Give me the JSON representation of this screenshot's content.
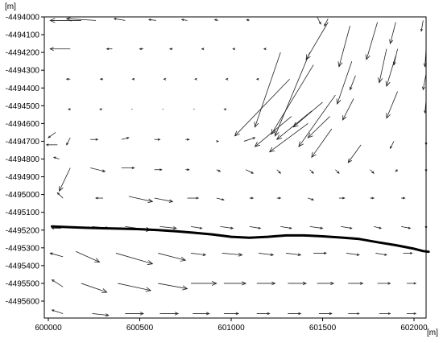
{
  "chart_data": {
    "type": "vector-field",
    "x_unit_label": "[m]",
    "y_unit_label": "[m]",
    "xlim": [
      600000,
      602100
    ],
    "ylim": [
      -4495680,
      -4494000
    ],
    "x_ticks": [
      600000,
      600500,
      601000,
      601500,
      602000
    ],
    "x_tick_labels": [
      "600000",
      "600500",
      "601000",
      "601500",
      "602000"
    ],
    "y_ticks": [
      -4494000,
      -4494100,
      -4494200,
      -4494300,
      -4494400,
      -4494500,
      -4494600,
      -4494700,
      -4494800,
      -4494900,
      -4495000,
      -4495100,
      -4495200,
      -4495300,
      -4495400,
      -4495500,
      -4495600
    ],
    "y_tick_labels": [
      "-4494000",
      "-4494100",
      "-4494200",
      "-4494300",
      "-4494400",
      "-4494500",
      "-4494600",
      "-4494700",
      "-4494800",
      "-4494900",
      "-4495000",
      "-4495100",
      "-4495200",
      "-4495300",
      "-4495400",
      "-4495500",
      "-4495600"
    ],
    "grid": false,
    "vector_units": "m in map coordinates (arrow displacement dx, dy)",
    "vectors": [
      {
        "x": 600180,
        "y": -4494020,
        "dx": -170,
        "dy": 0
      },
      {
        "x": 600260,
        "y": -4494020,
        "dx": -160,
        "dy": 10
      },
      {
        "x": 600420,
        "y": -4494020,
        "dx": -60,
        "dy": 10
      },
      {
        "x": 600590,
        "y": -4494020,
        "dx": -40,
        "dy": 5
      },
      {
        "x": 600760,
        "y": -4494020,
        "dx": -30,
        "dy": 5
      },
      {
        "x": 600930,
        "y": -4494020,
        "dx": -20,
        "dy": 5
      },
      {
        "x": 601100,
        "y": -4494020,
        "dx": -15,
        "dy": 5
      },
      {
        "x": 601470,
        "y": -4493990,
        "dx": 20,
        "dy": -50
      },
      {
        "x": 601530,
        "y": -4494030,
        "dx": -120,
        "dy": -210
      },
      {
        "x": 601530,
        "y": -4494010,
        "dx": -20,
        "dy": -40
      },
      {
        "x": 601800,
        "y": -4494030,
        "dx": -60,
        "dy": -210
      },
      {
        "x": 601900,
        "y": -4494030,
        "dx": -30,
        "dy": -120
      },
      {
        "x": 602050,
        "y": -4494020,
        "dx": -10,
        "dy": -60
      },
      {
        "x": 600120,
        "y": -4494180,
        "dx": -110,
        "dy": 0
      },
      {
        "x": 600350,
        "y": -4494180,
        "dx": -30,
        "dy": 0
      },
      {
        "x": 600520,
        "y": -4494180,
        "dx": -20,
        "dy": 0
      },
      {
        "x": 600680,
        "y": -4494180,
        "dx": -15,
        "dy": 0
      },
      {
        "x": 600850,
        "y": -4494180,
        "dx": -10,
        "dy": 0
      },
      {
        "x": 601020,
        "y": -4494180,
        "dx": -10,
        "dy": 0
      },
      {
        "x": 601190,
        "y": -4494180,
        "dx": -10,
        "dy": 0
      },
      {
        "x": 601650,
        "y": -4494050,
        "dx": -60,
        "dy": -230
      },
      {
        "x": 601850,
        "y": -4494180,
        "dx": -40,
        "dy": -190
      },
      {
        "x": 601910,
        "y": -4494180,
        "dx": -20,
        "dy": -90
      },
      {
        "x": 602080,
        "y": -4494180,
        "dx": -20,
        "dy": -100
      },
      {
        "x": 600120,
        "y": -4494350,
        "dx": -20,
        "dy": 0
      },
      {
        "x": 600300,
        "y": -4494350,
        "dx": -15,
        "dy": 0
      },
      {
        "x": 600470,
        "y": -4494350,
        "dx": -10,
        "dy": 0
      },
      {
        "x": 600640,
        "y": -4494350,
        "dx": -8,
        "dy": 0
      },
      {
        "x": 600810,
        "y": -4494350,
        "dx": -8,
        "dy": 0
      },
      {
        "x": 600980,
        "y": -4494350,
        "dx": -8,
        "dy": 0
      },
      {
        "x": 601150,
        "y": -4494350,
        "dx": -10,
        "dy": 0
      },
      {
        "x": 601270,
        "y": -4494200,
        "dx": -140,
        "dy": -420
      },
      {
        "x": 601430,
        "y": -4494200,
        "dx": -190,
        "dy": -470
      },
      {
        "x": 601660,
        "y": -4494250,
        "dx": -80,
        "dy": -240
      },
      {
        "x": 601680,
        "y": -4494330,
        "dx": -30,
        "dy": -80
      },
      {
        "x": 601900,
        "y": -4494220,
        "dx": -50,
        "dy": -170
      },
      {
        "x": 602080,
        "y": -4494320,
        "dx": -30,
        "dy": -90
      },
      {
        "x": 600120,
        "y": -4494520,
        "dx": -10,
        "dy": 0
      },
      {
        "x": 600290,
        "y": -4494520,
        "dx": -8,
        "dy": 0
      },
      {
        "x": 600460,
        "y": -4494520,
        "dx": -6,
        "dy": 0
      },
      {
        "x": 600630,
        "y": -4494520,
        "dx": -6,
        "dy": 0
      },
      {
        "x": 600800,
        "y": -4494520,
        "dx": -6,
        "dy": 0
      },
      {
        "x": 600970,
        "y": -4494520,
        "dx": -8,
        "dy": 0
      },
      {
        "x": 601320,
        "y": -4494350,
        "dx": -300,
        "dy": -320
      },
      {
        "x": 601450,
        "y": -4494270,
        "dx": -230,
        "dy": -390
      },
      {
        "x": 601570,
        "y": -4494440,
        "dx": -200,
        "dy": -290
      },
      {
        "x": 601670,
        "y": -4494460,
        "dx": -60,
        "dy": -120
      },
      {
        "x": 601910,
        "y": -4494420,
        "dx": -60,
        "dy": -150
      },
      {
        "x": 602080,
        "y": -4494470,
        "dx": -20,
        "dy": -70
      },
      {
        "x": 600120,
        "y": -4494680,
        "dx": -20,
        "dy": -40
      },
      {
        "x": 600230,
        "y": -4494690,
        "dx": 40,
        "dy": 0
      },
      {
        "x": 600400,
        "y": -4494690,
        "dx": 40,
        "dy": 10
      },
      {
        "x": 600580,
        "y": -4494690,
        "dx": 30,
        "dy": 0
      },
      {
        "x": 600750,
        "y": -4494690,
        "dx": 20,
        "dy": 0
      },
      {
        "x": 600920,
        "y": -4494700,
        "dx": 10,
        "dy": 0
      },
      {
        "x": 601070,
        "y": -4494700,
        "dx": 60,
        "dy": 20
      },
      {
        "x": 601330,
        "y": -4494560,
        "dx": -200,
        "dy": -170
      },
      {
        "x": 601420,
        "y": -4494600,
        "dx": -210,
        "dy": -160
      },
      {
        "x": 601440,
        "y": -4494530,
        "dx": -190,
        "dy": -160
      },
      {
        "x": 601500,
        "y": -4494480,
        "dx": -160,
        "dy": -140
      },
      {
        "x": 601540,
        "y": -4494560,
        "dx": -120,
        "dy": -120
      },
      {
        "x": 601550,
        "y": -4494630,
        "dx": -110,
        "dy": -160
      },
      {
        "x": 601710,
        "y": -4494720,
        "dx": -70,
        "dy": -100
      },
      {
        "x": 601890,
        "y": -4494700,
        "dx": -20,
        "dy": -40
      },
      {
        "x": 602080,
        "y": -4494700,
        "dx": -10,
        "dy": -20
      },
      {
        "x": 600050,
        "y": -4494720,
        "dx": -60,
        "dy": 0
      },
      {
        "x": 600040,
        "y": -4494650,
        "dx": -40,
        "dy": -30
      },
      {
        "x": 600060,
        "y": -4494800,
        "dx": -30,
        "dy": 10
      },
      {
        "x": 600120,
        "y": -4494850,
        "dx": -60,
        "dy": -130
      },
      {
        "x": 600230,
        "y": -4494850,
        "dx": 80,
        "dy": -20
      },
      {
        "x": 600400,
        "y": -4494850,
        "dx": 70,
        "dy": 0
      },
      {
        "x": 600580,
        "y": -4494860,
        "dx": 40,
        "dy": 0
      },
      {
        "x": 600750,
        "y": -4494860,
        "dx": 20,
        "dy": 0
      },
      {
        "x": 600920,
        "y": -4494860,
        "dx": 20,
        "dy": -10
      },
      {
        "x": 601080,
        "y": -4494860,
        "dx": 40,
        "dy": -20
      },
      {
        "x": 601250,
        "y": -4494860,
        "dx": 20,
        "dy": -20
      },
      {
        "x": 601430,
        "y": -4494860,
        "dx": 20,
        "dy": -20
      },
      {
        "x": 601570,
        "y": -4494860,
        "dx": 20,
        "dy": -20
      },
      {
        "x": 601760,
        "y": -4494860,
        "dx": 20,
        "dy": -20
      },
      {
        "x": 601910,
        "y": -4494860,
        "dx": -10,
        "dy": -10
      },
      {
        "x": 602080,
        "y": -4494860,
        "dx": 10,
        "dy": -10
      },
      {
        "x": 600080,
        "y": -4495020,
        "dx": -30,
        "dy": 30
      },
      {
        "x": 600300,
        "y": -4495020,
        "dx": -40,
        "dy": 0
      },
      {
        "x": 600440,
        "y": -4495010,
        "dx": 130,
        "dy": -30
      },
      {
        "x": 600580,
        "y": -4495020,
        "dx": 100,
        "dy": -20
      },
      {
        "x": 600760,
        "y": -4495020,
        "dx": 60,
        "dy": 0
      },
      {
        "x": 600920,
        "y": -4495020,
        "dx": 40,
        "dy": -10
      },
      {
        "x": 601100,
        "y": -4495020,
        "dx": 20,
        "dy": 0
      },
      {
        "x": 601250,
        "y": -4495020,
        "dx": 20,
        "dy": 0
      },
      {
        "x": 601420,
        "y": -4495020,
        "dx": 30,
        "dy": -10
      },
      {
        "x": 601590,
        "y": -4495020,
        "dx": 30,
        "dy": 0
      },
      {
        "x": 601760,
        "y": -4495020,
        "dx": 20,
        "dy": 0
      },
      {
        "x": 601930,
        "y": -4495020,
        "dx": 20,
        "dy": 0
      },
      {
        "x": 602080,
        "y": -4495020,
        "dx": 20,
        "dy": 0
      },
      {
        "x": 600070,
        "y": -4495190,
        "dx": -50,
        "dy": 0
      },
      {
        "x": 600240,
        "y": -4495180,
        "dx": 90,
        "dy": -10
      },
      {
        "x": 600420,
        "y": -4495180,
        "dx": 140,
        "dy": -20
      },
      {
        "x": 600610,
        "y": -4495180,
        "dx": 90,
        "dy": -10
      },
      {
        "x": 600780,
        "y": -4495180,
        "dx": 60,
        "dy": -10
      },
      {
        "x": 600940,
        "y": -4495180,
        "dx": 70,
        "dy": -10
      },
      {
        "x": 601100,
        "y": -4495180,
        "dx": 60,
        "dy": -10
      },
      {
        "x": 601270,
        "y": -4495180,
        "dx": 60,
        "dy": -10
      },
      {
        "x": 601430,
        "y": -4495180,
        "dx": 70,
        "dy": -10
      },
      {
        "x": 601600,
        "y": -4495180,
        "dx": 60,
        "dy": -10
      },
      {
        "x": 601780,
        "y": -4495180,
        "dx": 40,
        "dy": -10
      },
      {
        "x": 601930,
        "y": -4495180,
        "dx": 50,
        "dy": -10
      },
      {
        "x": 602080,
        "y": -4495180,
        "dx": 40,
        "dy": -10
      },
      {
        "x": 600080,
        "y": -4495350,
        "dx": -70,
        "dy": 20
      },
      {
        "x": 600150,
        "y": -4495320,
        "dx": 130,
        "dy": -60
      },
      {
        "x": 600370,
        "y": -4495330,
        "dx": 200,
        "dy": -60
      },
      {
        "x": 600600,
        "y": -4495330,
        "dx": 150,
        "dy": -40
      },
      {
        "x": 600780,
        "y": -4495330,
        "dx": 80,
        "dy": -10
      },
      {
        "x": 600950,
        "y": -4495330,
        "dx": 110,
        "dy": -10
      },
      {
        "x": 601150,
        "y": -4495330,
        "dx": 80,
        "dy": -10
      },
      {
        "x": 601300,
        "y": -4495330,
        "dx": 80,
        "dy": -10
      },
      {
        "x": 601450,
        "y": -4495330,
        "dx": 70,
        "dy": 0
      },
      {
        "x": 601630,
        "y": -4495330,
        "dx": 70,
        "dy": -10
      },
      {
        "x": 601790,
        "y": -4495330,
        "dx": 60,
        "dy": -10
      },
      {
        "x": 601940,
        "y": -4495330,
        "dx": 50,
        "dy": 0
      },
      {
        "x": 602080,
        "y": -4495330,
        "dx": 50,
        "dy": 0
      },
      {
        "x": 600080,
        "y": -4495520,
        "dx": -60,
        "dy": 40
      },
      {
        "x": 600180,
        "y": -4495500,
        "dx": 140,
        "dy": -50
      },
      {
        "x": 600380,
        "y": -4495500,
        "dx": 180,
        "dy": -40
      },
      {
        "x": 600600,
        "y": -4495500,
        "dx": 160,
        "dy": -30
      },
      {
        "x": 600780,
        "y": -4495500,
        "dx": 140,
        "dy": 0
      },
      {
        "x": 600960,
        "y": -4495500,
        "dx": 120,
        "dy": 0
      },
      {
        "x": 601140,
        "y": -4495500,
        "dx": 100,
        "dy": 0
      },
      {
        "x": 601310,
        "y": -4495500,
        "dx": 100,
        "dy": 0
      },
      {
        "x": 601470,
        "y": -4495500,
        "dx": 90,
        "dy": 0
      },
      {
        "x": 601640,
        "y": -4495500,
        "dx": 80,
        "dy": 0
      },
      {
        "x": 601800,
        "y": -4495500,
        "dx": 70,
        "dy": 0
      },
      {
        "x": 601960,
        "y": -4495500,
        "dx": 50,
        "dy": 0
      },
      {
        "x": 602080,
        "y": -4495500,
        "dx": 50,
        "dy": 0
      },
      {
        "x": 600080,
        "y": -4495670,
        "dx": -60,
        "dy": 20
      },
      {
        "x": 600240,
        "y": -4495670,
        "dx": 90,
        "dy": -10
      },
      {
        "x": 600420,
        "y": -4495670,
        "dx": 100,
        "dy": 0
      },
      {
        "x": 600610,
        "y": -4495670,
        "dx": 100,
        "dy": 0
      },
      {
        "x": 600790,
        "y": -4495670,
        "dx": 90,
        "dy": 0
      },
      {
        "x": 600960,
        "y": -4495670,
        "dx": 80,
        "dy": 0
      },
      {
        "x": 601140,
        "y": -4495670,
        "dx": 70,
        "dy": 0
      },
      {
        "x": 601310,
        "y": -4495670,
        "dx": 70,
        "dy": 0
      },
      {
        "x": 601480,
        "y": -4495670,
        "dx": 70,
        "dy": 0
      },
      {
        "x": 601640,
        "y": -4495670,
        "dx": 60,
        "dy": 0
      },
      {
        "x": 601810,
        "y": -4495670,
        "dx": 60,
        "dy": 0
      },
      {
        "x": 601960,
        "y": -4495670,
        "dx": 50,
        "dy": 0
      },
      {
        "x": 602080,
        "y": -4495670,
        "dx": 50,
        "dy": 0
      }
    ],
    "line": {
      "points": [
        [
          600020,
          -4495180
        ],
        [
          600100,
          -4495183
        ],
        [
          600200,
          -4495187
        ],
        [
          600300,
          -4495190
        ],
        [
          600400,
          -4495192
        ],
        [
          600500,
          -4495195
        ],
        [
          600600,
          -4495200
        ],
        [
          600700,
          -4495207
        ],
        [
          600800,
          -4495215
        ],
        [
          600900,
          -4495225
        ],
        [
          601000,
          -4495238
        ],
        [
          601100,
          -4495243
        ],
        [
          601200,
          -4495238
        ],
        [
          601300,
          -4495230
        ],
        [
          601400,
          -4495230
        ],
        [
          601500,
          -4495235
        ],
        [
          601600,
          -4495242
        ],
        [
          601700,
          -4495250
        ],
        [
          601800,
          -4495268
        ],
        [
          601900,
          -4495285
        ],
        [
          602000,
          -4495305
        ],
        [
          602050,
          -4495318
        ],
        [
          602080,
          -4495322
        ]
      ],
      "color": "#000000"
    }
  }
}
